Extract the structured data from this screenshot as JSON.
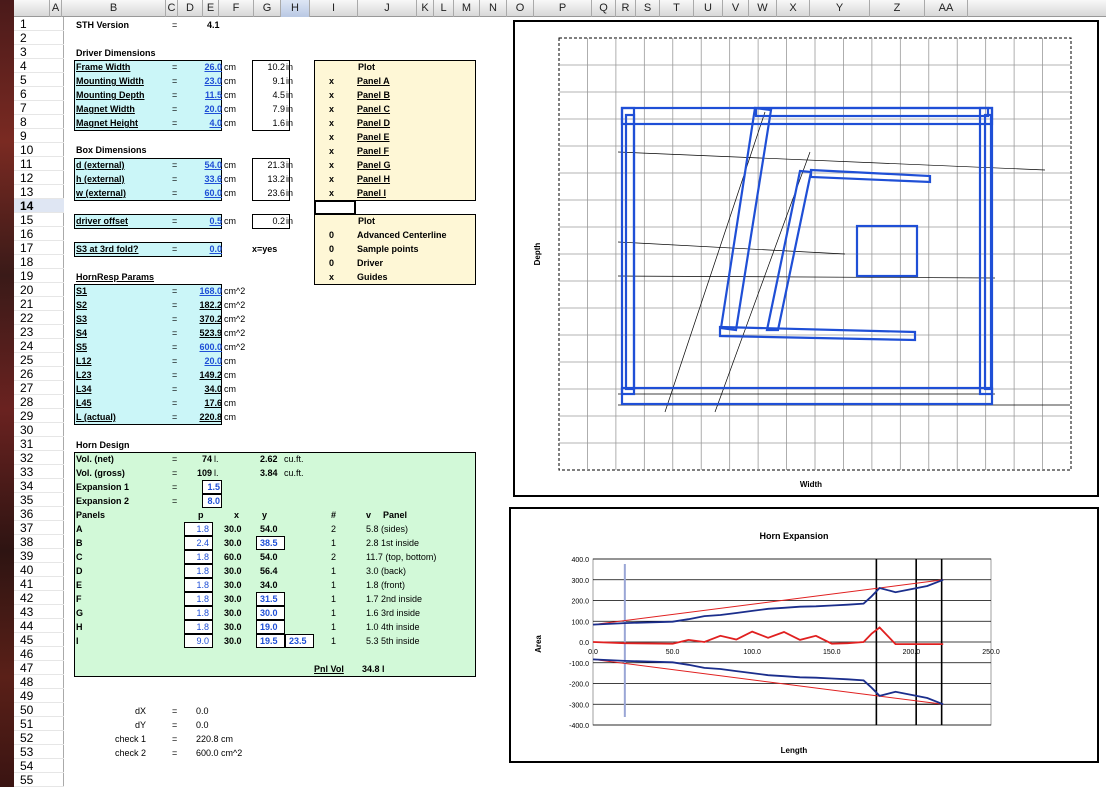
{
  "columns": [
    "A",
    "B",
    "C",
    "D",
    "E",
    "F",
    "G",
    "H",
    "I",
    "J",
    "K",
    "L",
    "M",
    "N",
    "O",
    "P",
    "Q",
    "R",
    "S",
    "T",
    "U",
    "V",
    "W",
    "X",
    "Y",
    "Z",
    "AA"
  ],
  "rows": [
    "1",
    "2",
    "3",
    "4",
    "5",
    "6",
    "7",
    "8",
    "9",
    "10",
    "11",
    "12",
    "13",
    "14",
    "15",
    "16",
    "17",
    "18",
    "19",
    "20",
    "21",
    "22",
    "23",
    "24",
    "25",
    "26",
    "27",
    "28",
    "29",
    "30",
    "31",
    "32",
    "33",
    "34",
    "35",
    "36",
    "37",
    "38",
    "39",
    "40",
    "41",
    "42",
    "43",
    "44",
    "45",
    "46",
    "47",
    "48",
    "49",
    "50",
    "51",
    "52",
    "53",
    "54",
    "55"
  ],
  "version": {
    "label": "STH Version",
    "eq": "=",
    "value": "4.1"
  },
  "driver": {
    "header": "Driver Dimensions",
    "rows": [
      {
        "label": "Frame Width",
        "eq": "=",
        "cm": "26.0",
        "u1": "cm",
        "inch": "10.2",
        "u2": "in"
      },
      {
        "label": "Mounting Width",
        "eq": "=",
        "cm": "23.0",
        "u1": "cm",
        "inch": "9.1",
        "u2": "in"
      },
      {
        "label": "Mounting Depth",
        "eq": "=",
        "cm": "11.5",
        "u1": "cm",
        "inch": "4.5",
        "u2": "in"
      },
      {
        "label": "Magnet Width",
        "eq": "=",
        "cm": "20.0",
        "u1": "cm",
        "inch": "7.9",
        "u2": "in"
      },
      {
        "label": "Magnet Height",
        "eq": "=",
        "cm": "4.0",
        "u1": "cm",
        "inch": "1.6",
        "u2": "in"
      }
    ]
  },
  "box": {
    "header": "Box Dimensions",
    "rows": [
      {
        "label": "d (external)",
        "eq": "=",
        "cm": "54.0",
        "u1": "cm",
        "inch": "21.3",
        "u2": "in"
      },
      {
        "label": "h (external)",
        "eq": "=",
        "cm": "33.6",
        "u1": "cm",
        "inch": "13.2",
        "u2": "in"
      },
      {
        "label": "w (external)",
        "eq": "=",
        "cm": "60.0",
        "u1": "cm",
        "inch": "23.6",
        "u2": "in"
      }
    ]
  },
  "offset": {
    "label": "driver offset",
    "eq": "=",
    "cm": "0.5",
    "u1": "cm",
    "inch": "0.2",
    "u2": "in"
  },
  "s3fold": {
    "label": "S3 at 3rd fold?",
    "eq": "=",
    "value": "0.0",
    "note": "x=yes"
  },
  "plot1": {
    "header": "Plot",
    "items": [
      {
        "mark": "x",
        "label": "Panel A"
      },
      {
        "mark": "x",
        "label": "Panel B"
      },
      {
        "mark": "x",
        "label": "Panel C"
      },
      {
        "mark": "x",
        "label": "Panel D"
      },
      {
        "mark": "x",
        "label": "Panel E"
      },
      {
        "mark": "x",
        "label": "Panel F"
      },
      {
        "mark": "x",
        "label": "Panel G"
      },
      {
        "mark": "x",
        "label": "Panel H"
      },
      {
        "mark": "x",
        "label": "Panel I"
      }
    ]
  },
  "plot2": {
    "header": "Plot",
    "items": [
      {
        "mark": "0",
        "label": "Advanced Centerline"
      },
      {
        "mark": "0",
        "label": "Sample points"
      },
      {
        "mark": "0",
        "label": "Driver"
      },
      {
        "mark": "x",
        "label": "Guides"
      }
    ]
  },
  "hornresp": {
    "header": "HornResp Params",
    "rows": [
      {
        "label": "S1",
        "eq": "=",
        "value": "168.0",
        "unit": "cm^2",
        "blue": true
      },
      {
        "label": "S2",
        "eq": "=",
        "value": "182.2",
        "unit": "cm^2",
        "blue": false
      },
      {
        "label": "S3",
        "eq": "=",
        "value": "370.2",
        "unit": "cm^2",
        "blue": false
      },
      {
        "label": "S4",
        "eq": "=",
        "value": "523.9",
        "unit": "cm^2",
        "blue": false
      },
      {
        "label": "S5",
        "eq": "=",
        "value": "600.0",
        "unit": "cm^2",
        "blue": true
      },
      {
        "label": "L12",
        "eq": "=",
        "value": "20.0",
        "unit": "cm",
        "blue": true
      },
      {
        "label": "L23",
        "eq": "=",
        "value": "149.2",
        "unit": "cm",
        "blue": false
      },
      {
        "label": "L34",
        "eq": "=",
        "value": "34.0",
        "unit": "cm",
        "blue": false
      },
      {
        "label": "L45",
        "eq": "=",
        "value": "17.6",
        "unit": "cm",
        "blue": false
      },
      {
        "label": "L (actual)",
        "eq": "=",
        "value": "220.8",
        "unit": "cm",
        "blue": false
      }
    ]
  },
  "horn": {
    "header": "Horn Design",
    "vnet": {
      "label": "Vol. (net)",
      "eq": "=",
      "value": "74",
      "unit": "l.",
      "cuft": "2.62",
      "cuunit": "cu.ft."
    },
    "vgross": {
      "label": "Vol. (gross)",
      "eq": "=",
      "value": "109",
      "unit": "l.",
      "cuft": "3.84",
      "cuunit": "cu.ft."
    },
    "exp1": {
      "label": "Expansion 1",
      "eq": "=",
      "value": "1.5"
    },
    "exp2": {
      "label": "Expansion 2",
      "eq": "=",
      "value": "8.0"
    },
    "panels_header": {
      "label": "Panels",
      "p": "p",
      "x": "x",
      "y": "y",
      "n": "#",
      "v": "v",
      "panel": "Panel"
    },
    "panels": [
      {
        "id": "A",
        "p": "1.8",
        "x": "30.0",
        "y": "54.0",
        "y2": "",
        "n": "2",
        "v": "5.8 (sides)",
        "pbox": true,
        "ybox": false
      },
      {
        "id": "B",
        "p": "2.4",
        "x": "30.0",
        "y": "38.5",
        "y2": "",
        "n": "1",
        "v": "2.8 1st inside",
        "pbox": true,
        "ybox": true
      },
      {
        "id": "C",
        "p": "1.8",
        "x": "60.0",
        "y": "54.0",
        "y2": "",
        "n": "2",
        "v": "11.7 (top, bottom)",
        "pbox": true,
        "ybox": false
      },
      {
        "id": "D",
        "p": "1.8",
        "x": "30.0",
        "y": "56.4",
        "y2": "",
        "n": "1",
        "v": "3.0 (back)",
        "pbox": true,
        "ybox": false
      },
      {
        "id": "E",
        "p": "1.8",
        "x": "30.0",
        "y": "34.0",
        "y2": "",
        "n": "1",
        "v": "1.8 (front)",
        "pbox": true,
        "ybox": false
      },
      {
        "id": "F",
        "p": "1.8",
        "x": "30.0",
        "y": "31.5",
        "y2": "",
        "n": "1",
        "v": "1.7 2nd inside",
        "pbox": true,
        "ybox": true
      },
      {
        "id": "G",
        "p": "1.8",
        "x": "30.0",
        "y": "30.0",
        "y2": "",
        "n": "1",
        "v": "1.6 3rd inside",
        "pbox": true,
        "ybox": true
      },
      {
        "id": "H",
        "p": "1.8",
        "x": "30.0",
        "y": "19.0",
        "y2": "",
        "n": "1",
        "v": "1.0 4th inside",
        "pbox": true,
        "ybox": true
      },
      {
        "id": "I",
        "p": "9.0",
        "x": "30.0",
        "y": "19.5",
        "y2": "23.5",
        "n": "1",
        "v": "5.3 5th inside",
        "pbox": true,
        "ybox": true
      }
    ],
    "pnlvol": {
      "label": "Pnl Vol",
      "value": "34.8 l"
    }
  },
  "checks": [
    {
      "label": "dX",
      "eq": "=",
      "value": "0.0"
    },
    {
      "label": "dY",
      "eq": "=",
      "value": "0.0"
    },
    {
      "label": "check 1",
      "eq": "=",
      "value": "220.8 cm"
    },
    {
      "label": "check 2",
      "eq": "=",
      "value": "600.0 cm^2"
    }
  ],
  "chart_data": [
    {
      "type": "line",
      "title": "",
      "xlabel": "Width",
      "ylabel": "Depth",
      "legend": "none",
      "grid": true,
      "note": "Plan view of horn panels (no tick labels shown)",
      "series": [
        {
          "name": "",
          "values": []
        }
      ]
    },
    {
      "type": "line",
      "title": "Horn Expansion",
      "xlabel": "Length",
      "ylabel": "Area",
      "legend": "none",
      "grid": true,
      "xlim": [
        0,
        250
      ],
      "ylim": [
        -400,
        400
      ],
      "xticks": [
        "0.0",
        "50.0",
        "100.0",
        "150.0",
        "200.0",
        "250.0"
      ],
      "yticks": [
        "400.0",
        "300.0",
        "200.0",
        "100.0",
        "0.0",
        "-100.0",
        "-200.0",
        "-300.0",
        "-400.0"
      ],
      "series": [
        {
          "name": "",
          "x": [
            0,
            20,
            50,
            60,
            70,
            80,
            90,
            100,
            110,
            120,
            130,
            140,
            150,
            160,
            170,
            175,
            180,
            190,
            200,
            210,
            220
          ],
          "y": [
            84,
            91,
            98,
            110,
            125,
            130,
            140,
            150,
            160,
            165,
            170,
            172,
            176,
            180,
            185,
            220,
            260,
            240,
            255,
            270,
            300
          ]
        },
        {
          "name": "",
          "x": [
            0,
            20,
            50,
            60,
            70,
            80,
            90,
            100,
            110,
            120,
            130,
            140,
            150,
            160,
            170,
            175,
            180,
            190,
            200,
            210,
            220
          ],
          "y": [
            0,
            -6,
            -8,
            10,
            0,
            30,
            12,
            50,
            20,
            48,
            10,
            30,
            -8,
            -6,
            0,
            40,
            70,
            -10,
            -10,
            -10,
            -10
          ]
        },
        {
          "name": "",
          "x": [
            0,
            220
          ],
          "y": [
            84,
            300
          ]
        },
        {
          "name": "",
          "x": [
            0,
            220
          ],
          "y": [
            -84,
            -300
          ]
        }
      ]
    }
  ],
  "colors": {
    "cyan": "#cbf6f8",
    "yellow": "#fef7d6",
    "green": "#d2f9d8",
    "blue": "#1f4fd6",
    "navy": "#1b2e8c",
    "red": "#e02020"
  }
}
